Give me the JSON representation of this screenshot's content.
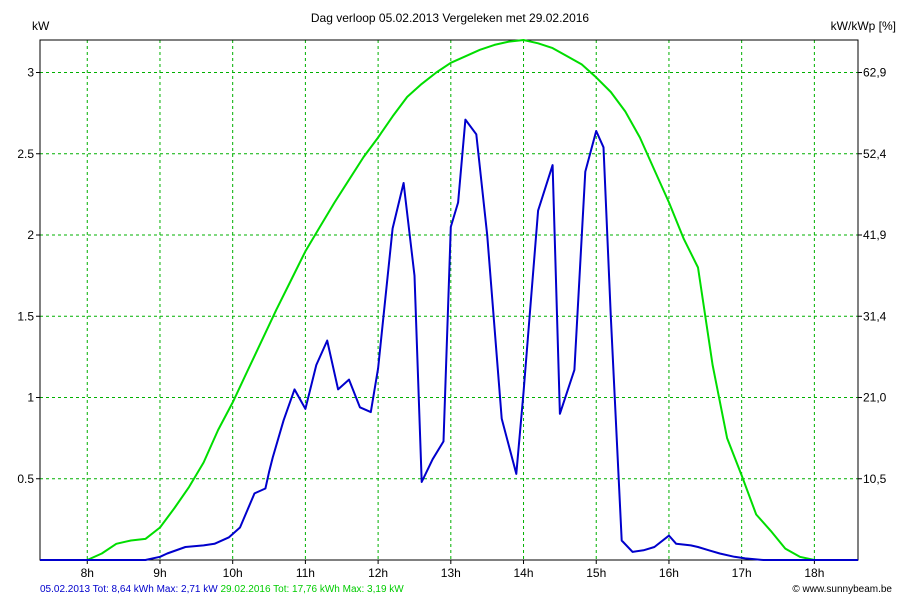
{
  "chart_data": {
    "type": "line",
    "title": "Dag  verloop 05.02.2013    Vergeleken met 29.02.2016",
    "ylabel_left": "kW",
    "ylabel_right": "kW/kWp [%]",
    "x_ticks": [
      "8h",
      "9h",
      "10h",
      "11h",
      "12h",
      "13h",
      "14h",
      "15h",
      "16h",
      "17h",
      "18h"
    ],
    "x_range": [
      7.35,
      18.6
    ],
    "y_left_ticks": [
      "0.5",
      "1",
      "1.5",
      "2",
      "2.5",
      "3"
    ],
    "y_left_range": [
      0,
      3.2
    ],
    "y_right_ticks": [
      "10,5",
      "21,0",
      "31,4",
      "41,9",
      "52,4",
      "62,9"
    ],
    "grid": true,
    "series": [
      {
        "name": "05.02.2013",
        "color": "#0000cc",
        "x": [
          7.35,
          8.0,
          8.4,
          8.8,
          9.0,
          9.1,
          9.35,
          9.6,
          9.75,
          9.95,
          10.0,
          10.1,
          10.3,
          10.45,
          10.5,
          10.55,
          10.7,
          10.85,
          11.0,
          11.15,
          11.3,
          11.45,
          11.6,
          11.75,
          11.9,
          12.0,
          12.2,
          12.35,
          12.5,
          12.6,
          12.75,
          12.9,
          13.0,
          13.1,
          13.2,
          13.35,
          13.5,
          13.7,
          13.9,
          14.0,
          14.2,
          14.4,
          14.5,
          14.7,
          14.85,
          15.0,
          15.1,
          15.2,
          15.35,
          15.5,
          15.65,
          15.8,
          16.0,
          16.1,
          16.3,
          16.4,
          16.55,
          16.7,
          16.9,
          17.05,
          17.3,
          17.6,
          18.0,
          18.6
        ],
        "y": [
          0.0,
          0.0,
          0.0,
          0.0,
          0.02,
          0.04,
          0.08,
          0.09,
          0.1,
          0.14,
          0.16,
          0.2,
          0.41,
          0.44,
          0.54,
          0.63,
          0.86,
          1.05,
          0.93,
          1.2,
          1.35,
          1.05,
          1.11,
          0.94,
          0.91,
          1.18,
          2.04,
          2.32,
          1.75,
          0.48,
          0.62,
          0.73,
          2.05,
          2.2,
          2.71,
          2.62,
          2.0,
          0.87,
          0.53,
          1.03,
          2.15,
          2.43,
          0.9,
          1.17,
          2.39,
          2.64,
          2.54,
          1.5,
          0.12,
          0.05,
          0.06,
          0.08,
          0.15,
          0.1,
          0.09,
          0.08,
          0.06,
          0.04,
          0.02,
          0.01,
          0.0,
          0.0,
          0.0,
          0.0
        ]
      },
      {
        "name": "29.02.2016",
        "color": "#00dd00",
        "x": [
          7.35,
          7.8,
          8.0,
          8.2,
          8.4,
          8.6,
          8.8,
          9.0,
          9.2,
          9.4,
          9.6,
          9.8,
          10.0,
          10.2,
          10.4,
          10.6,
          10.8,
          11.0,
          11.2,
          11.4,
          11.6,
          11.8,
          12.0,
          12.2,
          12.4,
          12.6,
          12.8,
          13.0,
          13.2,
          13.4,
          13.6,
          13.8,
          14.0,
          14.2,
          14.4,
          14.6,
          14.8,
          15.0,
          15.2,
          15.4,
          15.6,
          15.8,
          16.0,
          16.2,
          16.4,
          16.6,
          16.8,
          17.0,
          17.2,
          17.4,
          17.6,
          17.8,
          18.0,
          18.2,
          18.6
        ],
        "y": [
          0.0,
          0.0,
          0.0,
          0.04,
          0.1,
          0.12,
          0.13,
          0.2,
          0.32,
          0.45,
          0.6,
          0.8,
          0.97,
          1.16,
          1.35,
          1.54,
          1.72,
          1.9,
          2.05,
          2.2,
          2.34,
          2.48,
          2.6,
          2.73,
          2.85,
          2.93,
          3.0,
          3.06,
          3.1,
          3.14,
          3.17,
          3.19,
          3.2,
          3.18,
          3.15,
          3.1,
          3.05,
          2.97,
          2.88,
          2.76,
          2.6,
          2.4,
          2.2,
          1.98,
          1.8,
          1.2,
          0.75,
          0.52,
          0.28,
          0.18,
          0.07,
          0.02,
          0.0,
          0.0,
          0.0
        ]
      }
    ]
  },
  "footer": {
    "series1_text": "05.02.2013 Tot: 8,64 kWh Max: 2,71 kW",
    "series2_text": "29.02.2016 Tot: 17,76 kWh Max: 3,19 kW",
    "credit": "© www.sunnybeam.be"
  }
}
